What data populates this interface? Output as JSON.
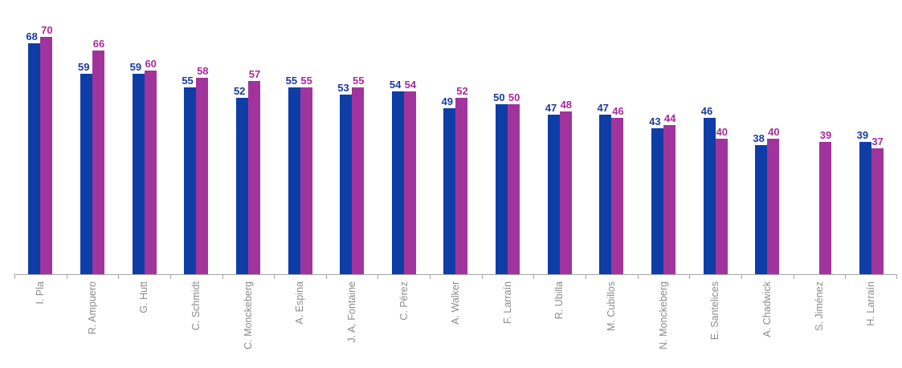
{
  "chart_data": {
    "type": "bar",
    "title": "",
    "xlabel": "",
    "ylabel": "",
    "categories": [
      "I. Pla",
      "R. Ampuero",
      "G. Hutt",
      "C. Schmidt",
      "C. Monckeberg",
      "A. Espina",
      "J. A. Fontaine",
      "C. Pérez",
      "A. Walker",
      "F. Larraín",
      "R. Ubilla",
      "M. Cubillos",
      "N. Monckeberg",
      "E. Santelices",
      "A. Chadwick",
      "S. Jiménez",
      "H. Larraín"
    ],
    "series": [
      {
        "name": "blue-series",
        "color": "#0f3da6",
        "label_color": "#1c3a9e",
        "values": [
          68,
          59,
          59,
          55,
          52,
          55,
          53,
          54,
          49,
          50,
          47,
          47,
          43,
          46,
          38,
          null,
          39
        ]
      },
      {
        "name": "magenta-series",
        "color": "#a1349c",
        "label_color": "#a82a9e",
        "values": [
          70,
          66,
          60,
          58,
          57,
          55,
          55,
          54,
          52,
          50,
          48,
          46,
          44,
          40,
          40,
          39,
          37
        ]
      }
    ],
    "ylim": [
      0,
      75
    ],
    "grid": false,
    "legend_position": "none",
    "value_labels": "outside-end",
    "axis_color": "#a6a6a6",
    "tick_color": "#a6a6a6",
    "category_label_color": "#8c8c8c",
    "background": "#ffffff"
  }
}
